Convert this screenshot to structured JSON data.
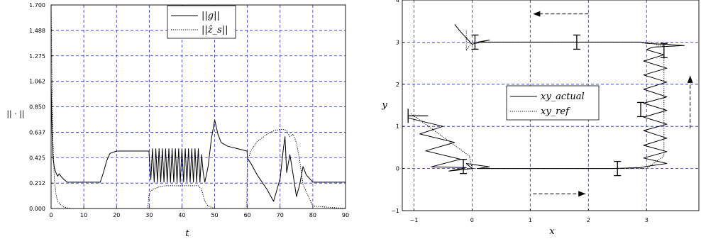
{
  "chart_data": [
    {
      "type": "line",
      "xlabel": "t",
      "ylabel": "|| · ||",
      "xlim": [
        0,
        90
      ],
      "ylim": [
        0,
        1.7
      ],
      "xticks": [
        "0",
        "10",
        "20",
        "30",
        "40",
        "50",
        "60",
        "70",
        "80",
        "90"
      ],
      "yticks": [
        "0.000",
        "0.212",
        "0.425",
        "0.637",
        "0.850",
        "1.062",
        "1.275",
        "1.488",
        "1.700"
      ],
      "grid": true,
      "legend_position": "top-center",
      "series": [
        {
          "name": "||g||",
          "style": "solid",
          "x": [
            0,
            0.3,
            0.6,
            1,
            1.5,
            2,
            2.5,
            3,
            4,
            5,
            8,
            12,
            15,
            16,
            17,
            18,
            20,
            25,
            29.9,
            30,
            30.5,
            31,
            31.5,
            32,
            32.5,
            33,
            33.5,
            34,
            34.5,
            35,
            35.5,
            36,
            36.5,
            37,
            37.5,
            38,
            38.5,
            39,
            39.5,
            40,
            40.5,
            41,
            41.5,
            42,
            42.5,
            43,
            43.5,
            44,
            44.5,
            45,
            45.5,
            46,
            46.5,
            47,
            48,
            49,
            50,
            51,
            52,
            54,
            57,
            59.9,
            60,
            61,
            63,
            66,
            68,
            70,
            71,
            71.5,
            72,
            73,
            74,
            75,
            76,
            77,
            78,
            80,
            85,
            90
          ],
          "y": [
            1.05,
            0.62,
            0.42,
            0.34,
            0.3,
            0.27,
            0.29,
            0.27,
            0.24,
            0.22,
            0.22,
            0.22,
            0.22,
            0.3,
            0.4,
            0.46,
            0.48,
            0.48,
            0.48,
            0.44,
            0.24,
            0.5,
            0.22,
            0.5,
            0.22,
            0.5,
            0.22,
            0.5,
            0.22,
            0.5,
            0.22,
            0.5,
            0.22,
            0.5,
            0.22,
            0.5,
            0.22,
            0.5,
            0.22,
            0.5,
            0.22,
            0.5,
            0.22,
            0.5,
            0.22,
            0.5,
            0.22,
            0.5,
            0.22,
            0.5,
            0.22,
            0.45,
            0.3,
            0.22,
            0.35,
            0.58,
            0.74,
            0.62,
            0.55,
            0.52,
            0.5,
            0.48,
            0.42,
            0.38,
            0.28,
            0.16,
            0.06,
            0.25,
            0.5,
            0.6,
            0.3,
            0.45,
            0.28,
            0.1,
            0.2,
            0.35,
            0.28,
            0.22,
            0.22,
            0.22
          ]
        },
        {
          "name": "||ẑ_s||",
          "style": "dotted",
          "x": [
            0,
            0.5,
            1,
            1.5,
            2,
            3,
            4,
            6,
            10,
            20,
            29.5,
            30,
            31,
            33,
            35,
            40,
            45,
            46,
            47,
            48,
            50,
            55,
            59.8,
            60,
            61,
            63,
            66,
            68,
            70,
            71,
            72,
            73,
            74,
            75,
            76,
            77,
            80,
            90
          ],
          "y": [
            1.7,
            0.6,
            0.25,
            0.12,
            0.06,
            0.03,
            0.01,
            0.0,
            0.0,
            0.0,
            0.0,
            0.12,
            0.16,
            0.18,
            0.19,
            0.19,
            0.19,
            0.16,
            0.06,
            0.02,
            0.0,
            0.0,
            0.0,
            0.38,
            0.48,
            0.56,
            0.62,
            0.65,
            0.66,
            0.66,
            0.65,
            0.6,
            0.62,
            0.55,
            0.4,
            0.2,
            0.02,
            0.0
          ]
        }
      ]
    },
    {
      "type": "line",
      "xlabel": "x",
      "ylabel": "y",
      "xlim": [
        -1.2,
        3.9
      ],
      "ylim": [
        -1,
        4
      ],
      "xticks": [
        "−1",
        "0",
        "1",
        "2",
        "3"
      ],
      "yticks": [
        "−1",
        "0",
        "1",
        "2",
        "3",
        "4"
      ],
      "grid": true,
      "legend_position": "center",
      "series": [
        {
          "name": "xy_actual",
          "style": "solid",
          "x": [
            -1.1,
            -0.5,
            -0.9,
            -0.3,
            -0.8,
            -0.2,
            -0.7,
            -0.1,
            -0.4,
            0.0,
            -0.1,
            0.3,
            0.1,
            0.4,
            2.4,
            2.9,
            3.0,
            3.35,
            2.95,
            3.35,
            2.95,
            3.35,
            2.95,
            3.35,
            2.95,
            3.35,
            2.95,
            3.35,
            2.95,
            3.35,
            2.95,
            3.35,
            2.95,
            3.3,
            3.0,
            3.1,
            3.65,
            3.3,
            3.0,
            2.9,
            0.1,
            0.3,
            0.0,
            -0.2,
            -0.3
          ],
          "y": [
            1.2,
            1.0,
            0.82,
            0.62,
            0.42,
            0.22,
            0.04,
            0.02,
            -0.06,
            0.0,
            0.12,
            0.04,
            0.0,
            0.0,
            0.0,
            0.02,
            0.05,
            0.12,
            0.25,
            0.4,
            0.55,
            0.72,
            0.9,
            1.05,
            1.22,
            1.38,
            1.55,
            1.7,
            1.88,
            2.05,
            2.22,
            2.38,
            2.55,
            2.7,
            2.82,
            2.88,
            2.92,
            2.95,
            2.97,
            3.0,
            3.0,
            3.05,
            2.95,
            3.25,
            3.42
          ]
        },
        {
          "name": "xy_ref",
          "style": "dotted",
          "x": [
            -1.05,
            -0.55,
            -0.05,
            0.0,
            0.5,
            1.0,
            1.5,
            2.0,
            2.5,
            3.0,
            3.3,
            3.3,
            3.0,
            2.5,
            2.0,
            1.5,
            1.2,
            0.6,
            0.0,
            -0.1,
            -0.1
          ],
          "y": [
            1.3,
            0.8,
            0.3,
            0.0,
            0.0,
            0.0,
            0.0,
            0.0,
            0.0,
            0.0,
            0.3,
            2.9,
            3.0,
            3.0,
            3.0,
            3.0,
            3.0,
            3.0,
            3.0,
            2.8,
            3.3
          ]
        }
      ]
    }
  ]
}
